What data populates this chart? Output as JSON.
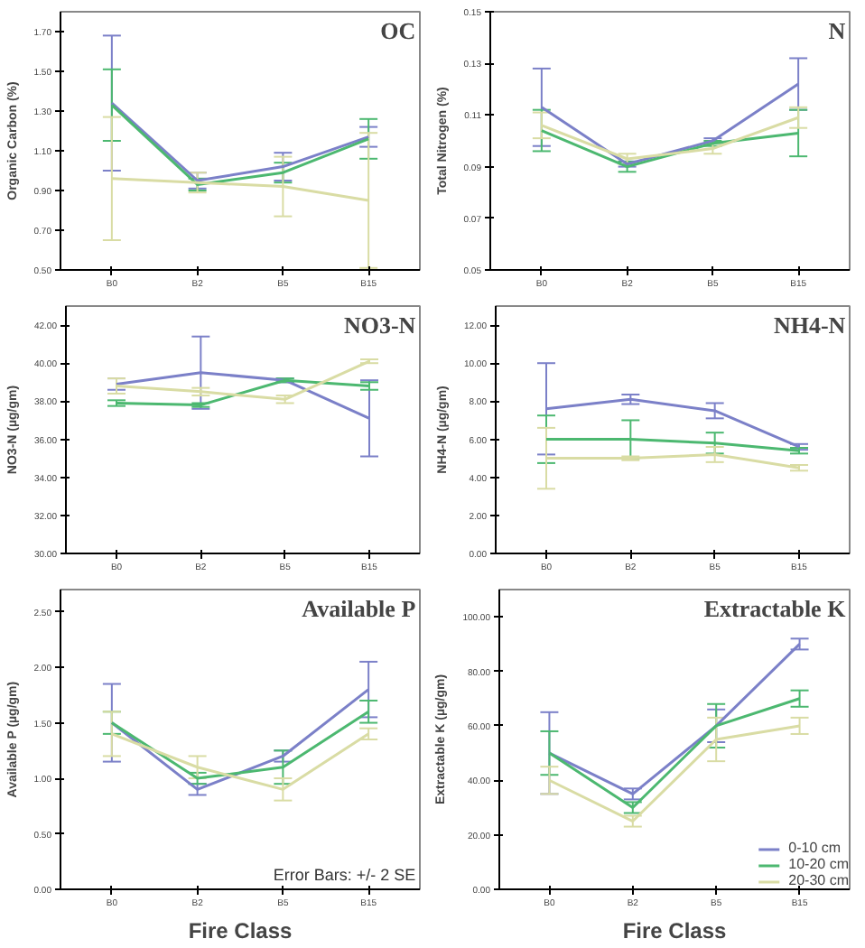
{
  "chart_data": [
    {
      "type": "line",
      "title": "OC",
      "ylabel": "Organic Carbon (%)",
      "categories": [
        "B0",
        "B2",
        "B5",
        "B15"
      ],
      "ylim": [
        0.5,
        1.8
      ],
      "yticks": [
        {
          "value": 0.5,
          "label": "0.50"
        },
        {
          "value": 0.7,
          "label": "0.70"
        },
        {
          "value": 0.9,
          "label": "0.90"
        },
        {
          "value": 1.1,
          "label": "1.10"
        },
        {
          "value": 1.3,
          "label": "1.30"
        },
        {
          "value": 1.5,
          "label": "1.50"
        },
        {
          "value": 1.7,
          "label": "1.70"
        }
      ],
      "series": [
        {
          "color": "#7b80c8",
          "values": [
            1.34,
            0.95,
            1.02,
            1.17
          ],
          "errors": [
            0.34,
            0.04,
            0.07,
            0.05
          ]
        },
        {
          "color": "#4cb870",
          "values": [
            1.33,
            0.93,
            0.99,
            1.16
          ],
          "errors": [
            0.18,
            0.03,
            0.05,
            0.1
          ]
        },
        {
          "color": "#d9dca4",
          "values": [
            0.96,
            0.94,
            0.92,
            0.85
          ],
          "errors": [
            0.31,
            0.05,
            0.15,
            0.34
          ]
        }
      ]
    },
    {
      "type": "line",
      "title": "N",
      "ylabel": "Total Nitrogen (%)",
      "categories": [
        "B0",
        "B2",
        "B5",
        "B15"
      ],
      "ylim": [
        0.05,
        0.15
      ],
      "yticks": [
        {
          "value": 0.05,
          "label": "0.05"
        },
        {
          "value": 0.07,
          "label": "0.07"
        },
        {
          "value": 0.09,
          "label": "0.09"
        },
        {
          "value": 0.11,
          "label": "0.11"
        },
        {
          "value": 0.13,
          "label": "0.13"
        },
        {
          "value": 0.15,
          "label": "0.15"
        }
      ],
      "series": [
        {
          "color": "#7b80c8",
          "values": [
            0.113,
            0.091,
            0.1,
            0.122
          ],
          "errors": [
            0.015,
            0.001,
            0.001,
            0.01
          ]
        },
        {
          "color": "#4cb870",
          "values": [
            0.104,
            0.09,
            0.099,
            0.103
          ],
          "errors": [
            0.008,
            0.002,
            0.001,
            0.009
          ]
        },
        {
          "color": "#d9dca4",
          "values": [
            0.106,
            0.093,
            0.097,
            0.109
          ],
          "errors": [
            0.005,
            0.002,
            0.002,
            0.004
          ]
        }
      ]
    },
    {
      "type": "line",
      "title": "NO3-N",
      "ylabel": "NO3-N (µg/gm)",
      "categories": [
        "B0",
        "B2",
        "B5",
        "B15"
      ],
      "ylim": [
        30,
        43
      ],
      "yticks": [
        {
          "value": 30,
          "label": "30.00"
        },
        {
          "value": 32,
          "label": "32.00"
        },
        {
          "value": 34,
          "label": "34.00"
        },
        {
          "value": 36,
          "label": "36.00"
        },
        {
          "value": 38,
          "label": "38.00"
        },
        {
          "value": 40,
          "label": "40.00"
        },
        {
          "value": 42,
          "label": "42.00"
        }
      ],
      "series": [
        {
          "color": "#7b80c8",
          "values": [
            38.9,
            39.5,
            39.1,
            37.1
          ],
          "errors": [
            0.3,
            1.9,
            0.1,
            2.0
          ]
        },
        {
          "color": "#4cb870",
          "values": [
            37.9,
            37.8,
            39.1,
            38.8
          ],
          "errors": [
            0.15,
            0.1,
            0.1,
            0.2
          ]
        },
        {
          "color": "#d9dca4",
          "values": [
            38.8,
            38.5,
            38.1,
            40.1
          ],
          "errors": [
            0.4,
            0.2,
            0.2,
            0.1
          ]
        }
      ]
    },
    {
      "type": "line",
      "title": "NH4-N",
      "ylabel": "NH4-N (µg/gm)",
      "categories": [
        "B0",
        "B2",
        "B5",
        "B15"
      ],
      "ylim": [
        0,
        13
      ],
      "yticks": [
        {
          "value": 0,
          "label": "0.00"
        },
        {
          "value": 2,
          "label": "2.00"
        },
        {
          "value": 4,
          "label": "4.00"
        },
        {
          "value": 6,
          "label": "6.00"
        },
        {
          "value": 8,
          "label": "8.00"
        },
        {
          "value": 10,
          "label": "10.00"
        },
        {
          "value": 12,
          "label": "12.00"
        }
      ],
      "series": [
        {
          "color": "#7b80c8",
          "values": [
            7.6,
            8.1,
            7.5,
            5.6
          ],
          "errors": [
            2.4,
            0.25,
            0.4,
            0.15
          ]
        },
        {
          "color": "#4cb870",
          "values": [
            6.0,
            6.0,
            5.8,
            5.4
          ],
          "errors": [
            1.25,
            1.0,
            0.55,
            0.15
          ]
        },
        {
          "color": "#d9dca4",
          "values": [
            5.0,
            5.0,
            5.2,
            4.5
          ],
          "errors": [
            1.6,
            0.1,
            0.4,
            0.15
          ]
        }
      ]
    },
    {
      "type": "line",
      "title": "Available P",
      "ylabel": "Available P (µg/gm)",
      "xlabel": "Fire Class",
      "annotations": [
        "Error Bars: +/- 2 SE"
      ],
      "categories": [
        "B0",
        "B2",
        "B5",
        "B15"
      ],
      "ylim": [
        0,
        2.7
      ],
      "yticks": [
        {
          "value": 0,
          "label": "0.00"
        },
        {
          "value": 0.5,
          "label": "0.50"
        },
        {
          "value": 1.0,
          "label": "1.00"
        },
        {
          "value": 1.5,
          "label": "1.50"
        },
        {
          "value": 2.0,
          "label": "2.00"
        },
        {
          "value": 2.5,
          "label": "2.50"
        }
      ],
      "series": [
        {
          "color": "#7b80c8",
          "values": [
            1.5,
            0.9,
            1.2,
            1.8
          ],
          "errors": [
            0.35,
            0.05,
            0.05,
            0.25
          ]
        },
        {
          "color": "#4cb870",
          "values": [
            1.5,
            1.0,
            1.1,
            1.6
          ],
          "errors": [
            0.1,
            0.05,
            0.15,
            0.1
          ]
        },
        {
          "color": "#d9dca4",
          "values": [
            1.4,
            1.1,
            0.9,
            1.4
          ],
          "errors": [
            0.2,
            0.1,
            0.1,
            0.05
          ]
        }
      ]
    },
    {
      "type": "line",
      "title": "Extractable K",
      "ylabel": "Extractable K (µg/gm)",
      "xlabel": "Fire Class",
      "categories": [
        "B0",
        "B2",
        "B5",
        "B15"
      ],
      "ylim": [
        0,
        110
      ],
      "yticks": [
        {
          "value": 0,
          "label": "0.00"
        },
        {
          "value": 20,
          "label": "20.00"
        },
        {
          "value": 40,
          "label": "40.00"
        },
        {
          "value": 60,
          "label": "60.00"
        },
        {
          "value": 80,
          "label": "80.00"
        },
        {
          "value": 100,
          "label": "100.00"
        }
      ],
      "legend": "bottom right",
      "series": [
        {
          "name": "0-10 cm",
          "color": "#7b80c8",
          "values": [
            50,
            35,
            60,
            90
          ],
          "errors": [
            15,
            2,
            6,
            2
          ]
        },
        {
          "name": "10-20 cm",
          "color": "#4cb870",
          "values": [
            50,
            30,
            60,
            70
          ],
          "errors": [
            8,
            2,
            8,
            3
          ]
        },
        {
          "name": "20-30 cm",
          "color": "#d9dca4",
          "values": [
            40,
            25,
            55,
            60
          ],
          "errors": [
            5,
            2,
            8,
            3
          ]
        }
      ]
    }
  ]
}
